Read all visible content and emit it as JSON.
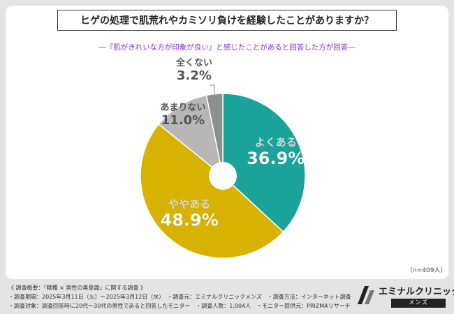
{
  "header": {
    "title": "ヒゲの処理で肌荒れやカミソリ負けを経験したことがありますか？",
    "subtitle": "―『肌がきれいな方が印象が良い』と感じたことがあると回答した方が回答―"
  },
  "sample_size": "（n=409人）",
  "colors": {
    "yoku": "#1aa39a",
    "yaya": "#d8b200",
    "amari": "#b7b7b7",
    "mattaku": "#8f8f8f"
  },
  "chart_data": {
    "type": "pie",
    "style": "donut",
    "title": "ヒゲの処理で肌荒れやカミソリ負けを経験したことがありますか？",
    "slices": [
      {
        "label": "よくある",
        "value": 36.9,
        "value_text": "36.9%"
      },
      {
        "label": "ややある",
        "value": 48.9,
        "value_text": "48.9%"
      },
      {
        "label": "あまりない",
        "value": 11.0,
        "value_text": "11.0%"
      },
      {
        "label": "全くない",
        "value": 3.2,
        "value_text": "3.2%"
      }
    ],
    "unit": "%"
  },
  "footer": {
    "line1": "《 調査概要：「職種 × 男性の美意識」に関する調査 》",
    "line2": "・調査期間：2025年3月11日（火）〜2025年3月12日（水）　・調査元：エミナルクリニックメンズ　・調査方法：インターネット調査",
    "line3": "・調査対象：調査回答時に20代〜30代の男性であると回答したモニター　・調査人数：1,004人　・モニター提供元：PRIZMAリサーチ"
  },
  "logo": {
    "name": "エミナルクリニック",
    "sub": "メンズ"
  }
}
